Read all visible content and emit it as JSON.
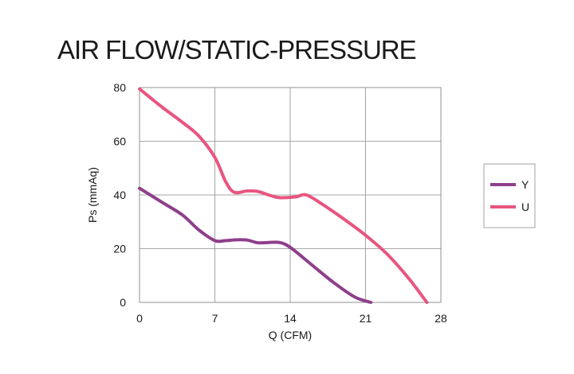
{
  "chart_data": {
    "type": "line",
    "title": "AIR FLOW/STATIC-PRESSURE",
    "xlabel": "Q (CFM)",
    "ylabel": "Ps (mmAq)",
    "x_ticks": [
      0,
      7,
      14,
      21,
      28
    ],
    "y_ticks": [
      0,
      20,
      40,
      60,
      80
    ],
    "xlim": [
      0,
      28
    ],
    "ylim": [
      0,
      80
    ],
    "grid": true,
    "legend_position": "right",
    "series": [
      {
        "name": "Y",
        "color": "#8e3f8b",
        "x": [
          0,
          2,
          4,
          5.5,
          7,
          8,
          9,
          10,
          11,
          12,
          13,
          14,
          16,
          18,
          20,
          21.5
        ],
        "y": [
          42.5,
          37.5,
          32.5,
          27,
          23,
          23,
          23.3,
          23.2,
          22.2,
          22.3,
          22.3,
          20.5,
          14,
          7.5,
          2,
          0
        ]
      },
      {
        "name": "U",
        "color": "#e8557f",
        "x": [
          0,
          2,
          4,
          5.5,
          7,
          8,
          8.8,
          10,
          11,
          12,
          13,
          14.5,
          15.5,
          17,
          19,
          21,
          23,
          25,
          26.7
        ],
        "y": [
          79.5,
          73,
          67,
          62,
          54,
          45,
          41,
          41.5,
          41.3,
          40,
          39,
          39.3,
          40,
          36.5,
          31,
          25,
          18,
          9,
          0
        ]
      }
    ]
  }
}
